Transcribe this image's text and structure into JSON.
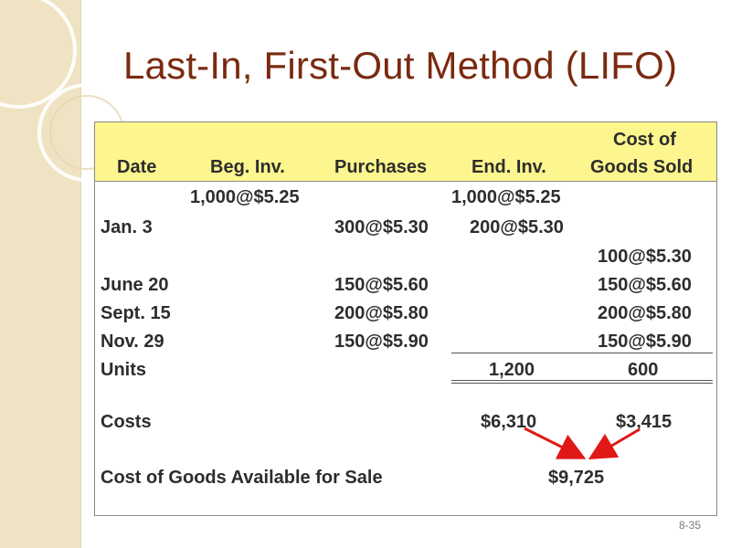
{
  "slide": {
    "title": "Last-In, First-Out Method (LIFO)",
    "page_number": "8-35"
  },
  "table": {
    "headers": {
      "date": "Date",
      "beg_inv": "Beg. Inv.",
      "purchases": "Purchases",
      "end_inv": "End. Inv.",
      "cogs_line1": "Cost of",
      "cogs_line2": "Goods Sold"
    },
    "rows": [
      {
        "date": "",
        "beg_inv": "1,000@$5.25",
        "purchases": "",
        "end_inv": "1,000@$5.25",
        "cogs": ""
      },
      {
        "date": "Jan. 3",
        "beg_inv": "",
        "purchases": "300@$5.30",
        "end_inv": "200@$5.30",
        "cogs": ""
      },
      {
        "date": "",
        "beg_inv": "",
        "purchases": "",
        "end_inv": "",
        "cogs": "100@$5.30"
      },
      {
        "date": "June 20",
        "beg_inv": "",
        "purchases": "150@$5.60",
        "end_inv": "",
        "cogs": "150@$5.60"
      },
      {
        "date": "Sept. 15",
        "beg_inv": "",
        "purchases": "200@$5.80",
        "end_inv": "",
        "cogs": "200@$5.80"
      },
      {
        "date": "Nov. 29",
        "beg_inv": "",
        "purchases": "150@$5.90",
        "end_inv": "",
        "cogs": "150@$5.90"
      }
    ],
    "units": {
      "label": "Units",
      "end_inv": "1,200",
      "cogs": "600"
    },
    "costs": {
      "label": "Costs",
      "end_inv": "$6,310",
      "cogs": "$3,415"
    },
    "available": {
      "label": "Cost of Goods Available for Sale",
      "value": "$9,725"
    }
  },
  "colors": {
    "title": "#7a2a10",
    "header_band": "#fdf68e",
    "left_band": "#efe3c3",
    "arrow": "#e01818"
  }
}
